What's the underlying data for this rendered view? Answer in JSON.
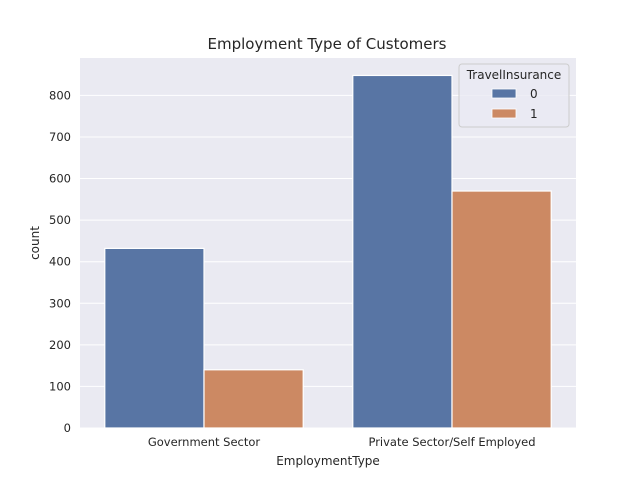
{
  "chart_data": {
    "type": "bar",
    "title": "Employment Type of Customers",
    "xlabel": "EmploymentType",
    "ylabel": "count",
    "categories": [
      "Government Sector",
      "Private Sector/Self Employed"
    ],
    "series": [
      {
        "name": "0",
        "values": [
          432,
          848
        ],
        "color": "#5875a4"
      },
      {
        "name": "1",
        "values": [
          140,
          570
        ],
        "color": "#cc8963"
      }
    ],
    "ylim": [
      0,
      890
    ],
    "yticks": [
      0,
      100,
      200,
      300,
      400,
      500,
      600,
      700,
      800
    ],
    "grid": true,
    "legend": {
      "title": "TravelInsurance",
      "placement": "top-right"
    },
    "background_color": "#eaeaf2"
  }
}
